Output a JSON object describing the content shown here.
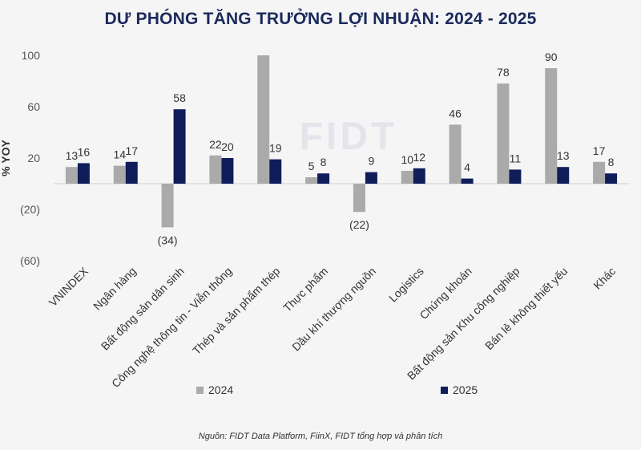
{
  "title": "DỰ PHÓNG TĂNG TRƯỞNG LỢI NHUẬN: 2024 - 2025",
  "source": "Nguồn: FIDT Data Platform, FiinX, FIDT tổng hợp và phân tích",
  "watermark": "FIDT",
  "colors": {
    "s2024": "#aaaaaa",
    "s2025": "#0f1e5a",
    "title": "#1b2a5c"
  },
  "chart_data": {
    "type": "bar",
    "ylabel": "% YOY",
    "ylim": [
      -60,
      100
    ],
    "yticks": [
      100,
      60,
      20,
      -20,
      -60
    ],
    "ytick_labels": [
      "100",
      "60",
      "20",
      "(20)",
      "(60)"
    ],
    "grid": false,
    "legend_position": "bottom",
    "categories": [
      "VNINDEX",
      "Ngân hàng",
      "Bất động sản dân sinh",
      "Công nghệ thông tin - Viễn thông",
      "Thép và sản phẩm thép",
      "Thực phẩm",
      "Dầu khí thượng nguồn",
      "Logistics",
      "Chứng khoán",
      "Bất động sản Khu công nghiệp",
      "Bán lẻ không thiết yếu",
      "Khác"
    ],
    "series": [
      {
        "name": "2024",
        "values": [
          13,
          14,
          -34,
          22,
          100,
          5,
          -22,
          10,
          46,
          78,
          90,
          17
        ],
        "labels": [
          "13",
          "14",
          "(34)",
          "22",
          "",
          "5",
          "(22)",
          "10",
          "46",
          "78",
          "90",
          "17"
        ]
      },
      {
        "name": "2025",
        "values": [
          16,
          17,
          58,
          20,
          19,
          8,
          9,
          12,
          4,
          11,
          13,
          8
        ],
        "labels": [
          "16",
          "17",
          "58",
          "20",
          "19",
          "8",
          "9",
          "12",
          "4",
          "11",
          "13",
          "8"
        ]
      }
    ]
  }
}
